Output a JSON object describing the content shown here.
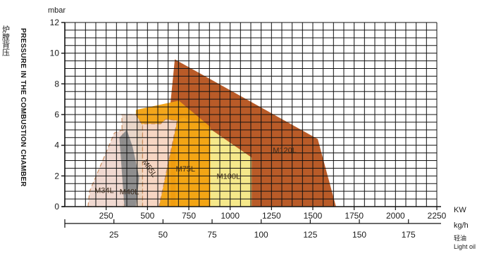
{
  "chart_data": {
    "type": "area",
    "y_unit": "mbar",
    "y_title": "PRESSURE IN THE COMBUSTION CHAMBER",
    "y_title_cn": "炉膛背压",
    "x_unit_power": "KW",
    "x_unit_flow": "kg/h",
    "fuel_cn": "轻油",
    "fuel_label": "Light oil",
    "ylim": [
      0,
      12
    ],
    "xlim": [
      0,
      2250
    ],
    "flow_per_kw": 0.0842,
    "y_ticks": [
      "0",
      "2",
      "4",
      "6",
      "8",
      "10",
      "12"
    ],
    "x_ticks_power": [
      {
        "value": 250,
        "label": "250"
      },
      {
        "value": 500,
        "label": "500"
      },
      {
        "value": 750,
        "label": "750"
      },
      {
        "value": 1000,
        "label": "1000"
      },
      {
        "value": 1250,
        "label": "1250"
      },
      {
        "value": 1500,
        "label": "1500"
      },
      {
        "value": 1750,
        "label": "1750"
      },
      {
        "value": 2000,
        "label": "2000"
      },
      {
        "value": 2250,
        "label": "2250"
      }
    ],
    "x_ticks_flow": [
      {
        "value": 25,
        "label": "25"
      },
      {
        "value": 50,
        "label": "50"
      },
      {
        "value": 75,
        "label": "75"
      },
      {
        "value": 100,
        "label": "100"
      },
      {
        "value": 125,
        "label": "125"
      },
      {
        "value": 150,
        "label": "150"
      },
      {
        "value": 175,
        "label": "175"
      }
    ],
    "series": [
      {
        "name": "M120L",
        "color": "#b5521c",
        "dashed": false,
        "points": [
          [
            640,
            0
          ],
          [
            640,
            4.5
          ],
          [
            635,
            6.3
          ],
          [
            665,
            9.6
          ],
          [
            1530,
            4.4
          ],
          [
            1640,
            0
          ]
        ],
        "label_at": [
          1330,
          3.5
        ]
      },
      {
        "name": "M100L",
        "color": "#f8f08f",
        "dashed": false,
        "points": [
          [
            670,
            0
          ],
          [
            670,
            5.6
          ],
          [
            720,
            5.8
          ],
          [
            875,
            5.1
          ],
          [
            1130,
            3.2
          ],
          [
            1130,
            0
          ]
        ],
        "label_at": [
          990,
          1.8
        ]
      },
      {
        "name": "M75L",
        "color": "#f2a10f",
        "dashed": false,
        "points": [
          [
            430,
            0
          ],
          [
            430,
            6.3
          ],
          [
            690,
            6.9
          ],
          [
            880,
            5.2
          ],
          [
            880,
            0
          ]
        ],
        "label_at": [
          730,
          2.3
        ]
      },
      {
        "name": "M55L",
        "color": "#f8d9cc",
        "dashed": true,
        "points": [
          [
            470,
            0
          ],
          [
            470,
            5.4
          ],
          [
            580,
            5.4
          ],
          [
            610,
            5.7
          ],
          [
            680,
            5.6
          ],
          [
            570,
            0
          ]
        ],
        "label_at": [
          500,
          2.4
        ]
      },
      {
        "name": "M40L",
        "color": "#e9d5c8",
        "dashed": true,
        "points": [
          [
            350,
            0
          ],
          [
            345,
            6.0
          ],
          [
            430,
            6.0
          ],
          [
            470,
            5.3
          ],
          [
            470,
            0
          ]
        ],
        "label_at": [
          390,
          0.8
        ]
      },
      {
        "name": "M34L",
        "color": "#f0d8cf",
        "dashed": true,
        "points": [
          [
            140,
            0
          ],
          [
            150,
            1.0
          ],
          [
            300,
            4.8
          ],
          [
            350,
            5.0
          ],
          [
            360,
            0
          ]
        ],
        "label_at": [
          238,
          0.9
        ]
      },
      {
        "name": "",
        "color": "#8a8a8a",
        "dashed": false,
        "points": [
          [
            360,
            0
          ],
          [
            330,
            4.5
          ],
          [
            375,
            5.0
          ],
          [
            410,
            3.9
          ],
          [
            450,
            1.9
          ],
          [
            430,
            0
          ]
        ]
      }
    ]
  }
}
